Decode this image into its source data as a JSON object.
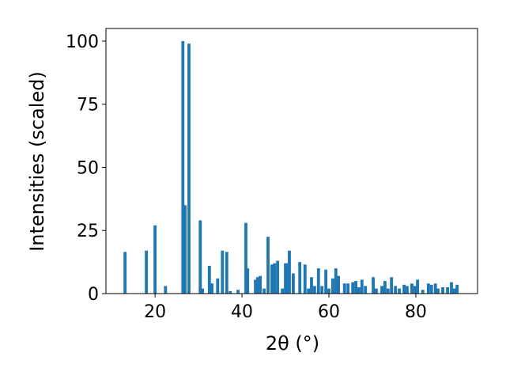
{
  "chart_data": {
    "type": "bar",
    "xlabel": "2θ (°)",
    "ylabel": "Intensities (scaled)",
    "color": "#1f77b4",
    "x": [
      13.1,
      18.0,
      20.0,
      22.4,
      26.4,
      26.9,
      27.8,
      30.4,
      30.9,
      32.5,
      33.1,
      34.4,
      35.5,
      36.5,
      37.3,
      39.1,
      40.9,
      41.3,
      43.1,
      43.6,
      44.2,
      45.1,
      46.0,
      46.9,
      47.5,
      48.2,
      49.3,
      50.0,
      50.4,
      50.9,
      51.8,
      53.3,
      54.5,
      55.3,
      56.0,
      56.7,
      57.6,
      58.4,
      59.3,
      60.0,
      60.9,
      61.6,
      62.2,
      63.6,
      64.4,
      65.5,
      66.2,
      66.9,
      67.6,
      68.4,
      70.2,
      70.9,
      72.2,
      72.9,
      73.6,
      74.4,
      75.3,
      76.2,
      77.3,
      78.0,
      79.1,
      79.8,
      80.4,
      81.6,
      82.9,
      83.6,
      84.5,
      85.1,
      86.2,
      87.3,
      88.2,
      88.9,
      89.5
    ],
    "values": [
      16.5,
      17,
      27,
      3,
      100,
      35,
      99,
      29,
      2,
      11,
      4,
      6,
      17,
      16.5,
      1,
      1.5,
      28,
      10,
      5.5,
      6.5,
      7,
      2,
      22.5,
      11.5,
      12,
      13,
      2,
      12,
      12,
      17,
      8,
      12.5,
      11.5,
      2,
      6.5,
      3,
      10,
      3,
      9.5,
      2,
      6,
      10,
      7,
      4,
      4,
      4.5,
      5,
      2.5,
      5.5,
      3,
      6.5,
      2,
      3,
      5,
      2,
      6.5,
      3,
      2,
      3.5,
      3,
      4,
      3,
      5.5,
      1.5,
      4,
      3.5,
      4,
      2,
      2.5,
      2.5,
      4.5,
      2,
      3.5
    ],
    "xlim": [
      8.7,
      94.2
    ],
    "ylim": [
      0,
      105
    ],
    "xticks": [
      20,
      40,
      60,
      80
    ],
    "yticks": [
      0,
      25,
      50,
      75,
      100
    ],
    "bar_width": 0.7
  }
}
